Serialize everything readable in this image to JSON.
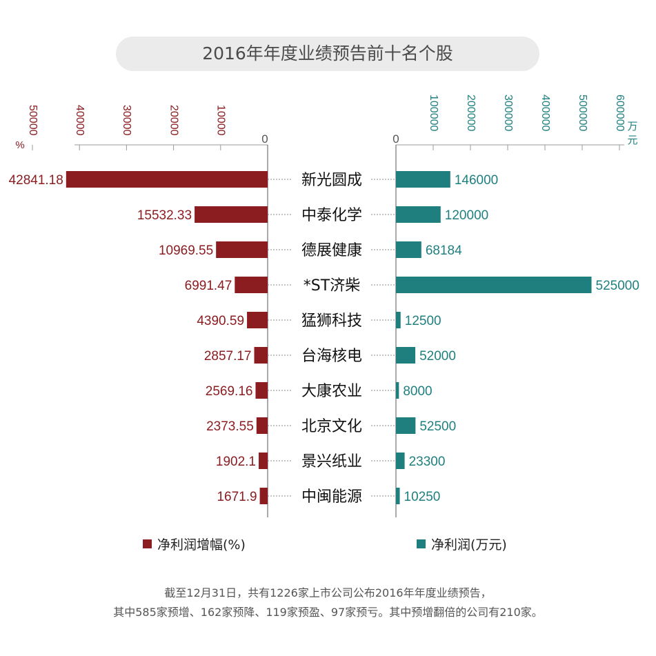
{
  "title": "2016年年度业绩预告前十名个股",
  "colors": {
    "growth": "#8b1c20",
    "profit": "#1f7f7f",
    "axis": "#999999"
  },
  "chart_data": {
    "type": "bar",
    "categories": [
      "新光圆成",
      "中泰化学",
      "德展健康",
      "*ST济柴",
      "猛狮科技",
      "台海核电",
      "大康农业",
      "北京文化",
      "景兴纸业",
      "中闽能源"
    ],
    "series": [
      {
        "name": "净利润增幅(%)",
        "values": [
          42841.18,
          15532.33,
          10969.55,
          6991.47,
          4390.59,
          2857.17,
          2569.16,
          2373.55,
          1902.1,
          1671.9
        ],
        "labels": [
          "42841.18",
          "15532.33",
          "10969.55",
          "6991.47",
          "4390.59",
          "2857.17",
          "2569.16",
          "2373.55",
          "1902.1",
          "1671.9"
        ]
      },
      {
        "name": "净利润(万元)",
        "values": [
          146000,
          120000,
          68184,
          525000,
          12500,
          52000,
          8000,
          52500,
          23300,
          10250
        ],
        "labels": [
          "146000",
          "120000",
          "68184",
          "525000",
          "12500",
          "52000",
          "8000",
          "52500",
          "23300",
          "10250"
        ]
      }
    ],
    "left_axis": {
      "unit": "%",
      "ticks": [
        "50000",
        "40000",
        "30000",
        "20000",
        "10000",
        "0"
      ],
      "tick_values": [
        50000,
        40000,
        30000,
        20000,
        10000,
        0
      ],
      "range": [
        0,
        57000
      ]
    },
    "right_axis": {
      "unit": "万元",
      "ticks": [
        "0",
        "100000",
        "200000",
        "300000",
        "400000",
        "500000",
        "600000"
      ],
      "tick_values": [
        0,
        100000,
        200000,
        300000,
        400000,
        500000,
        600000
      ],
      "range": [
        0,
        600000
      ]
    },
    "legend": [
      "净利润增幅(%)",
      "净利润(万元)"
    ]
  },
  "footnote": {
    "line1": "截至12月31日，共有1226家上市公司公布2016年年度业绩预告，",
    "line2": "其中585家预增、162家预降、119家预盈、97家预亏。其中预增翻倍的公司有210家。"
  }
}
